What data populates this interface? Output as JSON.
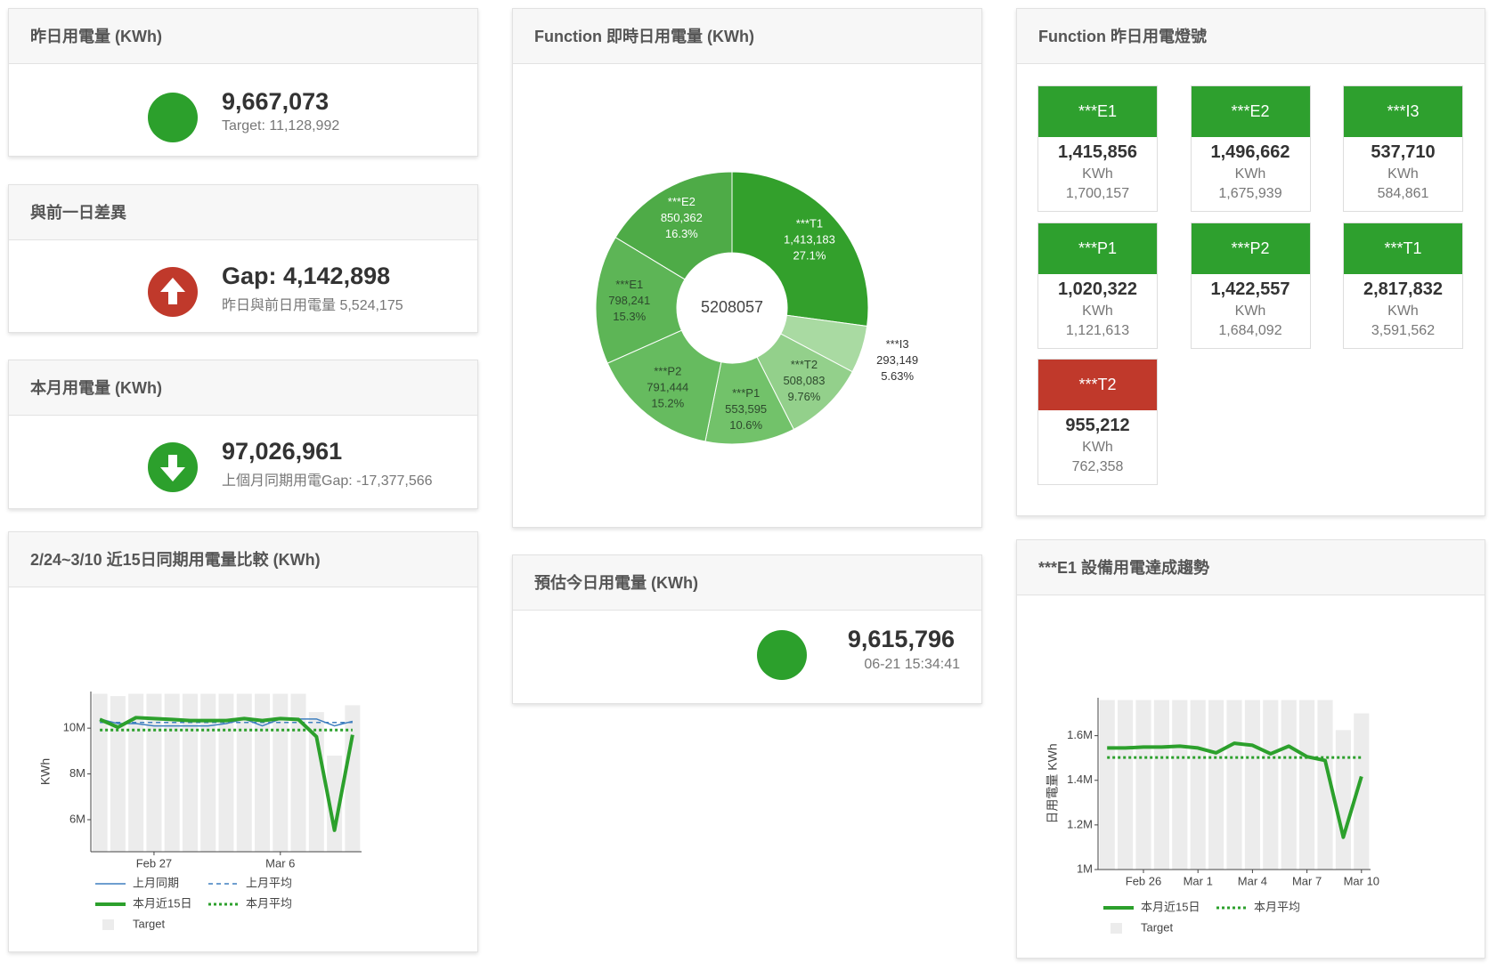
{
  "summary": {
    "yesterday": {
      "title": "昨日用電量 (KWh)",
      "value": "9,667,073",
      "sub": "Target: 11,128,992"
    },
    "gap": {
      "title": "與前一日差異",
      "value": "Gap: 4,142,898",
      "sub": "昨日與前日用電量 5,524,175"
    },
    "month": {
      "title": "本月用電量 (KWh)",
      "value": "97,026,961",
      "sub": "上個月同期用電Gap: -17,377,566"
    },
    "estimate": {
      "title": "預估今日用電量 (KWh)",
      "value": "9,615,796",
      "sub": "06-21 15:34:41"
    }
  },
  "lamps": {
    "title": "Function 昨日用電燈號",
    "items": [
      {
        "name": "***E1",
        "color": "#2ea02e",
        "value": "1,415,856",
        "unit": "KWh",
        "target": "1,700,157"
      },
      {
        "name": "***E2",
        "color": "#2ea02e",
        "value": "1,496,662",
        "unit": "KWh",
        "target": "1,675,939"
      },
      {
        "name": "***I3",
        "color": "#2ea02e",
        "value": "537,710",
        "unit": "KWh",
        "target": "584,861"
      },
      {
        "name": "***P1",
        "color": "#2ea02e",
        "value": "1,020,322",
        "unit": "KWh",
        "target": "1,121,613"
      },
      {
        "name": "***P2",
        "color": "#2ea02e",
        "value": "1,422,557",
        "unit": "KWh",
        "target": "1,684,092"
      },
      {
        "name": "***T1",
        "color": "#2ea02e",
        "value": "2,817,832",
        "unit": "KWh",
        "target": "3,591,562"
      },
      {
        "name": "***T2",
        "color": "#c0392b",
        "value": "955,212",
        "unit": "KWh",
        "target": "762,358"
      }
    ]
  },
  "chart_data": [
    {
      "type": "pie",
      "title": "Function 即時日用電量 (KWh)",
      "total": 5208057,
      "categories": [
        "***T1",
        "***I3",
        "***T2",
        "***P1",
        "***P2",
        "***E1",
        "***E2"
      ],
      "values": [
        1413183,
        293149,
        508083,
        553595,
        791444,
        798241,
        850362
      ],
      "value_labels": [
        "1,413,183",
        "293,149",
        "508,083",
        "553,595",
        "791,444",
        "798,241",
        "850,362"
      ],
      "percent_labels": [
        "27.1%",
        "5.63%",
        "9.76%",
        "10.6%",
        "15.2%",
        "15.3%",
        "16.3%"
      ],
      "colors": [
        "#33a02c",
        "#a9daa2",
        "#93d08b",
        "#72c26a",
        "#66bb5f",
        "#5db556",
        "#4eab47"
      ]
    },
    {
      "type": "line",
      "title": "2/24~3/10 近15日同期用電量比較 (KWh)",
      "ylabel": "KWh",
      "categories": [
        null,
        null,
        null,
        "Feb 27",
        null,
        null,
        null,
        null,
        null,
        null,
        "Mar 6",
        null,
        null,
        null,
        null
      ],
      "ylim": [
        4600000,
        11600000
      ],
      "yticks": [
        {
          "value": 6000000,
          "label": "6M"
        },
        {
          "value": 8000000,
          "label": "8M"
        },
        {
          "value": 10000000,
          "label": "10M"
        }
      ],
      "series": [
        {
          "name": "上月同期",
          "type": "line",
          "color": "#3f7fbf",
          "width": 1.5,
          "dash": "solid",
          "values": [
            10400000,
            10200000,
            10200000,
            10100000,
            10100000,
            10100000,
            10100000,
            10200000,
            10400000,
            10100000,
            10400000,
            10400000,
            10400000,
            10100000,
            10300000
          ]
        },
        {
          "name": "上月平均",
          "type": "line",
          "color": "#3f7fbf",
          "width": 1.5,
          "dash": "dashed",
          "values": [
            10250000,
            10250000,
            10250000,
            10250000,
            10250000,
            10250000,
            10250000,
            10250000,
            10250000,
            10250000,
            10250000,
            10250000,
            10250000,
            10250000,
            10250000
          ]
        },
        {
          "name": "本月近15日",
          "type": "line",
          "color": "#2ca02c",
          "width": 4,
          "dash": "solid",
          "values": [
            10380000,
            10040000,
            10460000,
            10420000,
            10380000,
            10330000,
            10330000,
            10330000,
            10420000,
            10330000,
            10420000,
            10380000,
            9630000,
            5540000,
            9710000
          ]
        },
        {
          "name": "本月平均",
          "type": "line",
          "color": "#2ca02c",
          "width": 3,
          "dash": "dotted",
          "values": [
            9920000,
            9920000,
            9920000,
            9920000,
            9920000,
            9920000,
            9920000,
            9920000,
            9920000,
            9920000,
            9920000,
            9920000,
            9920000,
            9920000,
            9920000
          ]
        },
        {
          "name": "Target",
          "type": "bar",
          "color": "#ececec",
          "values": [
            11500000,
            11400000,
            11500000,
            11500000,
            11500000,
            11500000,
            11500000,
            11500000,
            11500000,
            11500000,
            11500000,
            11500000,
            10700000,
            8800000,
            11000000
          ]
        }
      ]
    },
    {
      "type": "line",
      "title": "***E1 設備用電達成趨勢",
      "ylabel": "日用電量 KWh",
      "categories": [
        null,
        null,
        "Feb 26",
        null,
        null,
        "Mar 1",
        null,
        null,
        "Mar 4",
        null,
        null,
        "Mar 7",
        null,
        null,
        "Mar 10"
      ],
      "ylim": [
        1000000,
        1770000
      ],
      "yticks": [
        {
          "value": 1000000,
          "label": "1M"
        },
        {
          "value": 1200000,
          "label": "1.2M"
        },
        {
          "value": 1400000,
          "label": "1.4M"
        },
        {
          "value": 1600000,
          "label": "1.6M"
        }
      ],
      "series": [
        {
          "name": "本月近15日",
          "type": "line",
          "color": "#2ca02c",
          "width": 4,
          "dash": "solid",
          "values": [
            1545000,
            1545000,
            1549000,
            1549000,
            1553000,
            1545000,
            1523000,
            1566000,
            1557000,
            1519000,
            1553000,
            1506000,
            1489000,
            1145000,
            1417000
          ]
        },
        {
          "name": "本月平均",
          "type": "line",
          "color": "#2ca02c",
          "width": 3,
          "dash": "dotted",
          "values": [
            1502000,
            1502000,
            1502000,
            1502000,
            1502000,
            1502000,
            1502000,
            1502000,
            1502000,
            1502000,
            1502000,
            1502000,
            1502000,
            1502000,
            1502000
          ]
        },
        {
          "name": "Target",
          "type": "bar",
          "color": "#ececec",
          "values": [
            1760000,
            1760000,
            1760000,
            1760000,
            1760000,
            1760000,
            1760000,
            1760000,
            1760000,
            1760000,
            1760000,
            1760000,
            1760000,
            1625000,
            1700000
          ]
        }
      ]
    }
  ]
}
